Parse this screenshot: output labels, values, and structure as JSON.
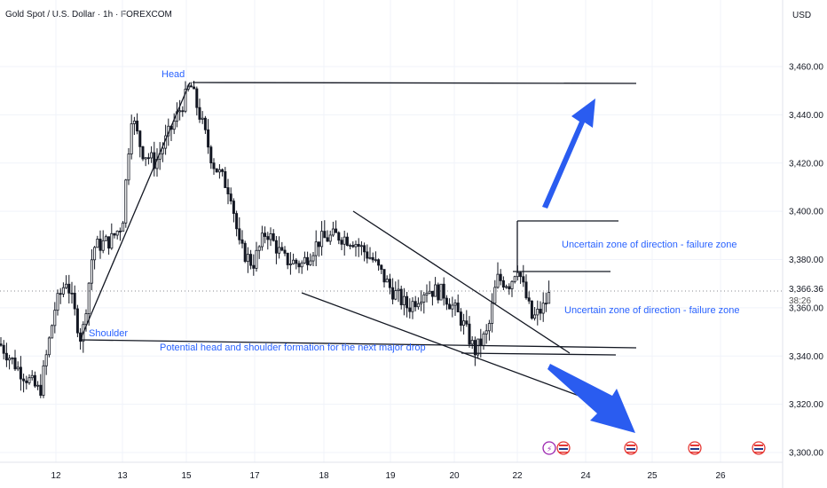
{
  "header": {
    "title": "Gold Spot / U.S. Dollar · 1h · FOREXCOM"
  },
  "currency": "USD",
  "price_label": "3,366.36",
  "countdown": "38:26",
  "colors": {
    "candle": "#131722",
    "annotation": "#2962ff",
    "arrow": "#2a5cf0",
    "line": "#131722",
    "grid": "#f0f3fa"
  },
  "annotations": {
    "head": "Head",
    "shoulder": "Shoulder",
    "pattern": "Potential head and shoulder formation for the next major drop",
    "zone_upper": "Uncertain zone of direction - failure zone",
    "zone_lower": "Uncertain zone of direction - failure zone"
  },
  "chart_data": {
    "type": "candlestick",
    "title": "Gold Spot / U.S. Dollar · 1h · FOREXCOM",
    "y_ticks": [
      "3,460.00",
      "3,440.00",
      "3,420.00",
      "3,400.00",
      "3,380.00",
      "3,360.00",
      "3,340.00",
      "3,320.00",
      "3,300.00"
    ],
    "y_values": [
      3460,
      3440,
      3420,
      3400,
      3380,
      3360,
      3340,
      3320,
      3300
    ],
    "ylim": [
      3297,
      3474
    ],
    "x_ticks": [
      "12",
      "13",
      "15",
      "17",
      "18",
      "19",
      "20",
      "22",
      "24",
      "25",
      "26"
    ],
    "last_price": 3366.36,
    "key_points": [
      {
        "label": "start",
        "price": 3345
      },
      {
        "label": "shoulder",
        "price": 3346
      },
      {
        "label": "head",
        "price": 3453
      },
      {
        "label": "low",
        "price": 3341
      },
      {
        "label": "last",
        "price": 3366.36
      }
    ],
    "levels": [
      {
        "name": "head-line",
        "price": 3453
      },
      {
        "name": "zone-top",
        "price": 3395
      },
      {
        "name": "zone-mid",
        "price": 3375
      },
      {
        "name": "neckline",
        "price": 3344
      },
      {
        "name": "support",
        "price": 3341
      }
    ],
    "grid": true
  }
}
